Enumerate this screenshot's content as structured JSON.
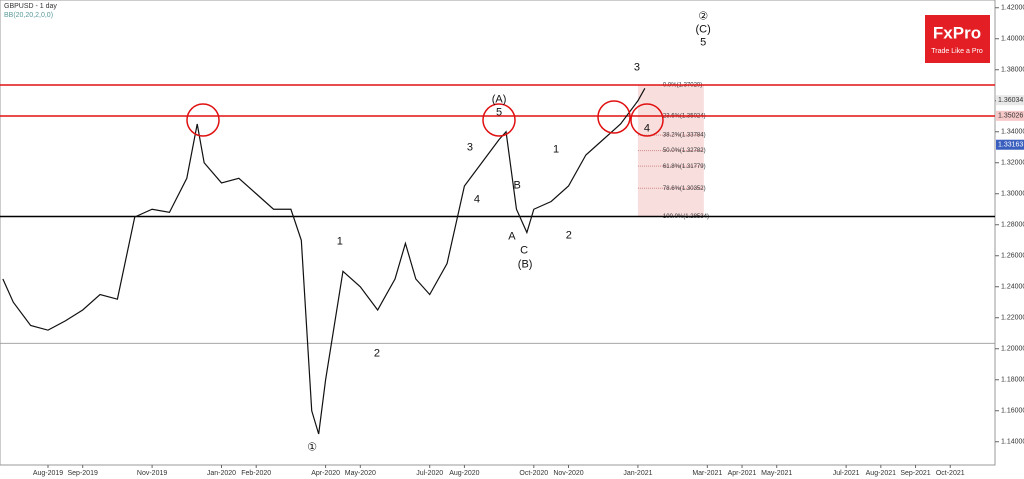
{
  "chart_data": {
    "type": "line",
    "title": "GBPUSD - 1 day",
    "subtitle": "BB(20,20,2,0,0)",
    "brand": "FxPro",
    "tagline": "Trade Like a Pro",
    "color": "#111111",
    "xlim": [
      -1.383,
      27.29
    ],
    "ylim": [
      1.125,
      1.425
    ],
    "x": [
      -1.3,
      -1,
      -0.5,
      0,
      0.5,
      1,
      1.5,
      2,
      2.5,
      3,
      3.5,
      4,
      4.3,
      4.5,
      5,
      5.5,
      6,
      6.5,
      7,
      7.3,
      7.6,
      7.8,
      8,
      8.5,
      9,
      9.5,
      10,
      10.3,
      10.6,
      11,
      11.5,
      12,
      12.5,
      13,
      13.2,
      13.5,
      13.8,
      14,
      14.5,
      15,
      15.5,
      16,
      16.5,
      17,
      17.2
    ],
    "values": [
      1.245,
      1.23,
      1.215,
      1.212,
      1.218,
      1.225,
      1.235,
      1.232,
      1.285,
      1.29,
      1.288,
      1.31,
      1.345,
      1.32,
      1.307,
      1.31,
      1.3,
      1.29,
      1.29,
      1.27,
      1.16,
      1.145,
      1.18,
      1.25,
      1.24,
      1.225,
      1.245,
      1.268,
      1.245,
      1.235,
      1.255,
      1.305,
      1.32,
      1.335,
      1.34,
      1.29,
      1.275,
      1.29,
      1.295,
      1.305,
      1.325,
      1.335,
      1.345,
      1.36,
      1.368
    ],
    "xticks": [
      {
        "value": 0,
        "label": "Aug-2019"
      },
      {
        "value": 1,
        "label": "Sep-2019"
      },
      {
        "value": 3,
        "label": "Nov-2019"
      },
      {
        "value": 5,
        "label": "Jan-2020"
      },
      {
        "value": 6,
        "label": "Feb-2020"
      },
      {
        "value": 8,
        "label": "Apr-2020"
      },
      {
        "value": 9,
        "label": "May-2020"
      },
      {
        "value": 11,
        "label": "Jul-2020"
      },
      {
        "value": 12,
        "label": "Aug-2020"
      },
      {
        "value": 14,
        "label": "Oct-2020"
      },
      {
        "value": 15,
        "label": "Nov-2020"
      },
      {
        "value": 17,
        "label": "Jan-2021"
      },
      {
        "value": 19,
        "label": "Mar-2021"
      },
      {
        "value": 20,
        "label": "Apr-2021"
      },
      {
        "value": 21,
        "label": "May-2021"
      },
      {
        "value": 23,
        "label": "Jul-2021"
      },
      {
        "value": 24,
        "label": "Aug-2021"
      },
      {
        "value": 25,
        "label": "Sep-2021"
      },
      {
        "value": 26,
        "label": "Oct-2021"
      }
    ],
    "yticks": [
      {
        "value": 1.42,
        "label": "1.42000"
      },
      {
        "value": 1.4,
        "label": "1.40000"
      },
      {
        "value": 1.38,
        "label": "1.38000"
      },
      {
        "value": 1.36,
        "label": "1.36000"
      },
      {
        "value": 1.34,
        "label": "1.34000"
      },
      {
        "value": 1.32,
        "label": "1.32000"
      },
      {
        "value": 1.3,
        "label": "1.30000"
      },
      {
        "value": 1.28,
        "label": "1.28000"
      },
      {
        "value": 1.26,
        "label": "1.26000"
      },
      {
        "value": 1.24,
        "label": "1.24000"
      },
      {
        "value": 1.22,
        "label": "1.22000"
      },
      {
        "value": 1.2,
        "label": "1.20000"
      },
      {
        "value": 1.18,
        "label": "1.18000"
      },
      {
        "value": 1.16,
        "label": "1.16000"
      },
      {
        "value": 1.14,
        "label": "1.14000"
      }
    ],
    "price_markers": [
      {
        "value": 1.36034,
        "color": "#e8e8e8"
      },
      {
        "value": 1.35026,
        "color": "#f6c8c8"
      },
      {
        "value": 1.33163,
        "color": "#3a5fbf"
      }
    ],
    "levels": [
      {
        "value": 1.3702,
        "color": "#e01010"
      },
      {
        "value": 1.3502,
        "color": "#e01010"
      },
      {
        "value": 1.28534,
        "color": "#000000"
      },
      {
        "value": 1.2035,
        "color": "#999999"
      }
    ],
    "fib_range": [
      17,
      18.9
    ],
    "fib_levels": [
      {
        "value": 1.3702,
        "label": "0.0%(1.37020)"
      },
      {
        "value": 1.35024,
        "label": "23.6%(1.35024)"
      },
      {
        "value": 1.33784,
        "label": "38.2%(1.33784)"
      },
      {
        "value": 1.32782,
        "label": "50.0%(1.32782)"
      },
      {
        "value": 1.31779,
        "label": "61.8%(1.31779)"
      },
      {
        "value": 1.30352,
        "label": "78.6%(1.30352)"
      },
      {
        "value": 1.28534,
        "label": "100.0%(1.28534)"
      }
    ],
    "annotations": [
      {
        "text": "(A)",
        "x": 13.0,
        "y": 1.3606
      },
      {
        "text": "5",
        "x": 13.0,
        "y": 1.3523
      },
      {
        "text": "(B)",
        "x": 13.75,
        "y": 1.2542
      },
      {
        "text": "A",
        "x": 13.37,
        "y": 1.2723
      },
      {
        "text": "B",
        "x": 13.52,
        "y": 1.3052
      },
      {
        "text": "C",
        "x": 13.72,
        "y": 1.2632
      },
      {
        "text": "1",
        "x": 14.64,
        "y": 1.3284
      },
      {
        "text": "2",
        "x": 15.01,
        "y": 1.2729
      },
      {
        "text": "3",
        "x": 16.97,
        "y": 1.3813
      },
      {
        "text": "4",
        "x": 17.26,
        "y": 1.3419
      },
      {
        "text": "②",
        "x": 18.88,
        "y": 1.4142
      },
      {
        "text": "(C)",
        "x": 18.88,
        "y": 1.4058
      },
      {
        "text": "5",
        "x": 18.88,
        "y": 1.3974
      },
      {
        "text": "1",
        "x": 8.41,
        "y": 1.269
      },
      {
        "text": "2",
        "x": 9.48,
        "y": 1.1968
      },
      {
        "text": "3",
        "x": 12.16,
        "y": 1.3297
      },
      {
        "text": "4",
        "x": 12.36,
        "y": 1.2961
      },
      {
        "text": "①",
        "x": 7.61,
        "y": 1.1361
      }
    ]
  }
}
